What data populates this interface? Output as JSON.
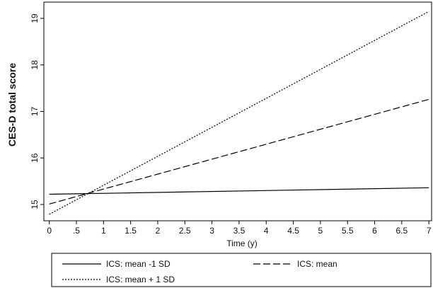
{
  "chart_data": {
    "type": "line",
    "xlabel": "Time (y)",
    "ylabel": "CES-D total score",
    "xlim": [
      -0.1,
      7.05
    ],
    "ylim": [
      14.65,
      19.35
    ],
    "x_ticks": [
      0,
      0.5,
      1,
      1.5,
      2,
      2.5,
      3,
      3.5,
      4,
      4.5,
      5,
      5.5,
      6,
      6.5,
      7
    ],
    "x_tick_labels": [
      "0",
      ".5",
      "1",
      "1.5",
      "2",
      "2.5",
      "3",
      "3.5",
      "4",
      "4.5",
      "5",
      "5.5",
      "6",
      "6.5",
      "7"
    ],
    "y_ticks": [
      15,
      16,
      17,
      18,
      19
    ],
    "y_tick_labels": [
      "15",
      "16",
      "17",
      "18",
      "19"
    ],
    "grid": false,
    "legend_position": "bottom",
    "series": [
      {
        "name": "ICS: mean -1 SD",
        "style": "solid",
        "color": "#000000",
        "x": [
          0,
          7
        ],
        "values": [
          15.22,
          15.36
        ]
      },
      {
        "name": "ICS: mean",
        "style": "dashed",
        "color": "#000000",
        "x": [
          0,
          7
        ],
        "values": [
          15.01,
          17.26
        ]
      },
      {
        "name": "ICS: mean + 1 SD",
        "style": "dotted",
        "color": "#000000",
        "x": [
          0,
          7
        ],
        "values": [
          14.79,
          19.15
        ]
      }
    ]
  }
}
